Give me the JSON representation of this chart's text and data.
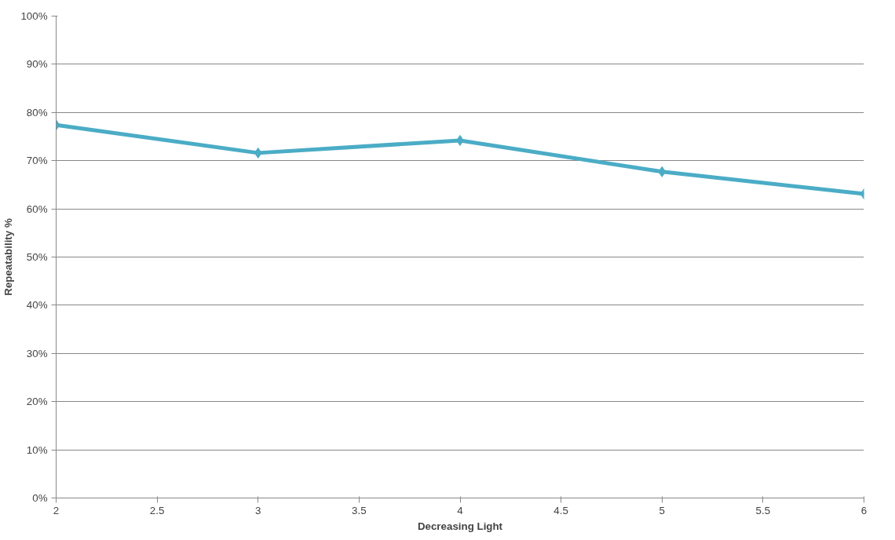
{
  "chart_data": {
    "type": "line",
    "xlabel": "Decreasing Light",
    "ylabel": "Repeatability %",
    "x": [
      2,
      3,
      4,
      5,
      6
    ],
    "series": [
      {
        "color": "#4bacc6",
        "values": [
          77.4,
          71.6,
          74.2,
          67.7,
          63.1
        ]
      }
    ],
    "xlim": [
      2,
      6
    ],
    "xticks": [
      2,
      2.5,
      3,
      3.5,
      4,
      4.5,
      5,
      5.5,
      6
    ],
    "ylim": [
      0,
      100
    ],
    "yticks": [
      {
        "value": 0,
        "label": "0%"
      },
      {
        "value": 10,
        "label": "10%"
      },
      {
        "value": 20,
        "label": "20%"
      },
      {
        "value": 30,
        "label": "30%"
      },
      {
        "value": 40,
        "label": "40%"
      },
      {
        "value": 50,
        "label": "50%"
      },
      {
        "value": 60,
        "label": "60%"
      },
      {
        "value": 70,
        "label": "70%"
      },
      {
        "value": 80,
        "label": "80%"
      },
      {
        "value": 90,
        "label": "90%"
      },
      {
        "value": 100,
        "label": "100%"
      }
    ],
    "grid": "y",
    "marker": "diamond",
    "line_style": "solid"
  }
}
